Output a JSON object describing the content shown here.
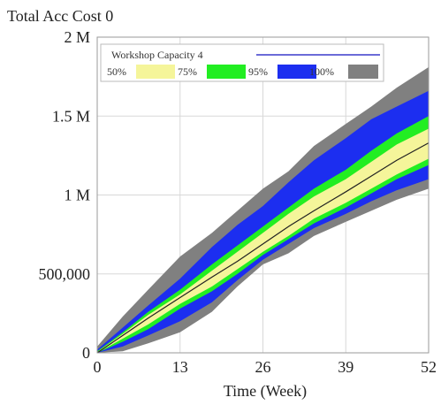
{
  "chart_data": {
    "type": "area",
    "title": "Total Acc Cost 0",
    "xlabel": "Time (Week)",
    "ylabel": "",
    "xlim": [
      0,
      52
    ],
    "ylim": [
      0,
      2000000
    ],
    "x_ticks": [
      0,
      13,
      26,
      39,
      52
    ],
    "x_tick_labels": [
      "0",
      "13",
      "26",
      "39",
      "52"
    ],
    "y_ticks": [
      0,
      500000,
      1000000,
      1500000,
      2000000
    ],
    "y_tick_labels": [
      "0",
      "500,000",
      "1 M",
      "1.5 M",
      "2 M"
    ],
    "grid": true,
    "legend_placement": "top-left",
    "line_series": {
      "name": "Workshop Capacity 4",
      "color": "#6b6bd8",
      "x": [
        0,
        4,
        8,
        13,
        18,
        22,
        26,
        30,
        34,
        39,
        43,
        47,
        52
      ],
      "y": [
        0,
        110000,
        220000,
        350000,
        480000,
        580000,
        690000,
        800000,
        900000,
        1020000,
        1120000,
        1220000,
        1330000
      ]
    },
    "bands": [
      {
        "name": "100%",
        "color": "#808080",
        "x": [
          0,
          4,
          8,
          13,
          18,
          22,
          26,
          30,
          34,
          39,
          43,
          47,
          52
        ],
        "upper": [
          40000,
          230000,
          400000,
          610000,
          760000,
          900000,
          1040000,
          1150000,
          1310000,
          1450000,
          1560000,
          1680000,
          1810000
        ],
        "lower": [
          0,
          10000,
          60000,
          130000,
          260000,
          420000,
          560000,
          630000,
          740000,
          830000,
          900000,
          970000,
          1040000
        ]
      },
      {
        "name": "95%",
        "color": "#1c2ef0",
        "x": [
          0,
          4,
          8,
          13,
          18,
          22,
          26,
          30,
          34,
          39,
          43,
          47,
          52
        ],
        "upper": [
          20000,
          160000,
          300000,
          470000,
          670000,
          810000,
          930000,
          1080000,
          1220000,
          1360000,
          1480000,
          1560000,
          1660000
        ],
        "lower": [
          0,
          40000,
          110000,
          200000,
          320000,
          460000,
          590000,
          690000,
          790000,
          880000,
          960000,
          1030000,
          1100000
        ]
      },
      {
        "name": "75%",
        "color": "#22ee22",
        "x": [
          0,
          4,
          8,
          13,
          18,
          22,
          26,
          30,
          34,
          39,
          43,
          47,
          52
        ],
        "upper": [
          10000,
          130000,
          260000,
          400000,
          560000,
          680000,
          800000,
          920000,
          1040000,
          1160000,
          1280000,
          1390000,
          1500000
        ],
        "lower": [
          0,
          70000,
          150000,
          280000,
          390000,
          500000,
          620000,
          720000,
          820000,
          920000,
          1010000,
          1100000,
          1190000
        ]
      },
      {
        "name": "50%",
        "color": "#f5f59a",
        "x": [
          0,
          4,
          8,
          13,
          18,
          22,
          26,
          30,
          34,
          39,
          43,
          47,
          52
        ],
        "upper": [
          5000,
          120000,
          240000,
          370000,
          520000,
          640000,
          760000,
          880000,
          990000,
          1100000,
          1210000,
          1320000,
          1420000
        ],
        "lower": [
          0,
          90000,
          180000,
          310000,
          420000,
          530000,
          640000,
          740000,
          850000,
          950000,
          1040000,
          1130000,
          1230000
        ]
      }
    ],
    "legend_bands_order": [
      "50%",
      "75%",
      "95%",
      "100%"
    ]
  }
}
